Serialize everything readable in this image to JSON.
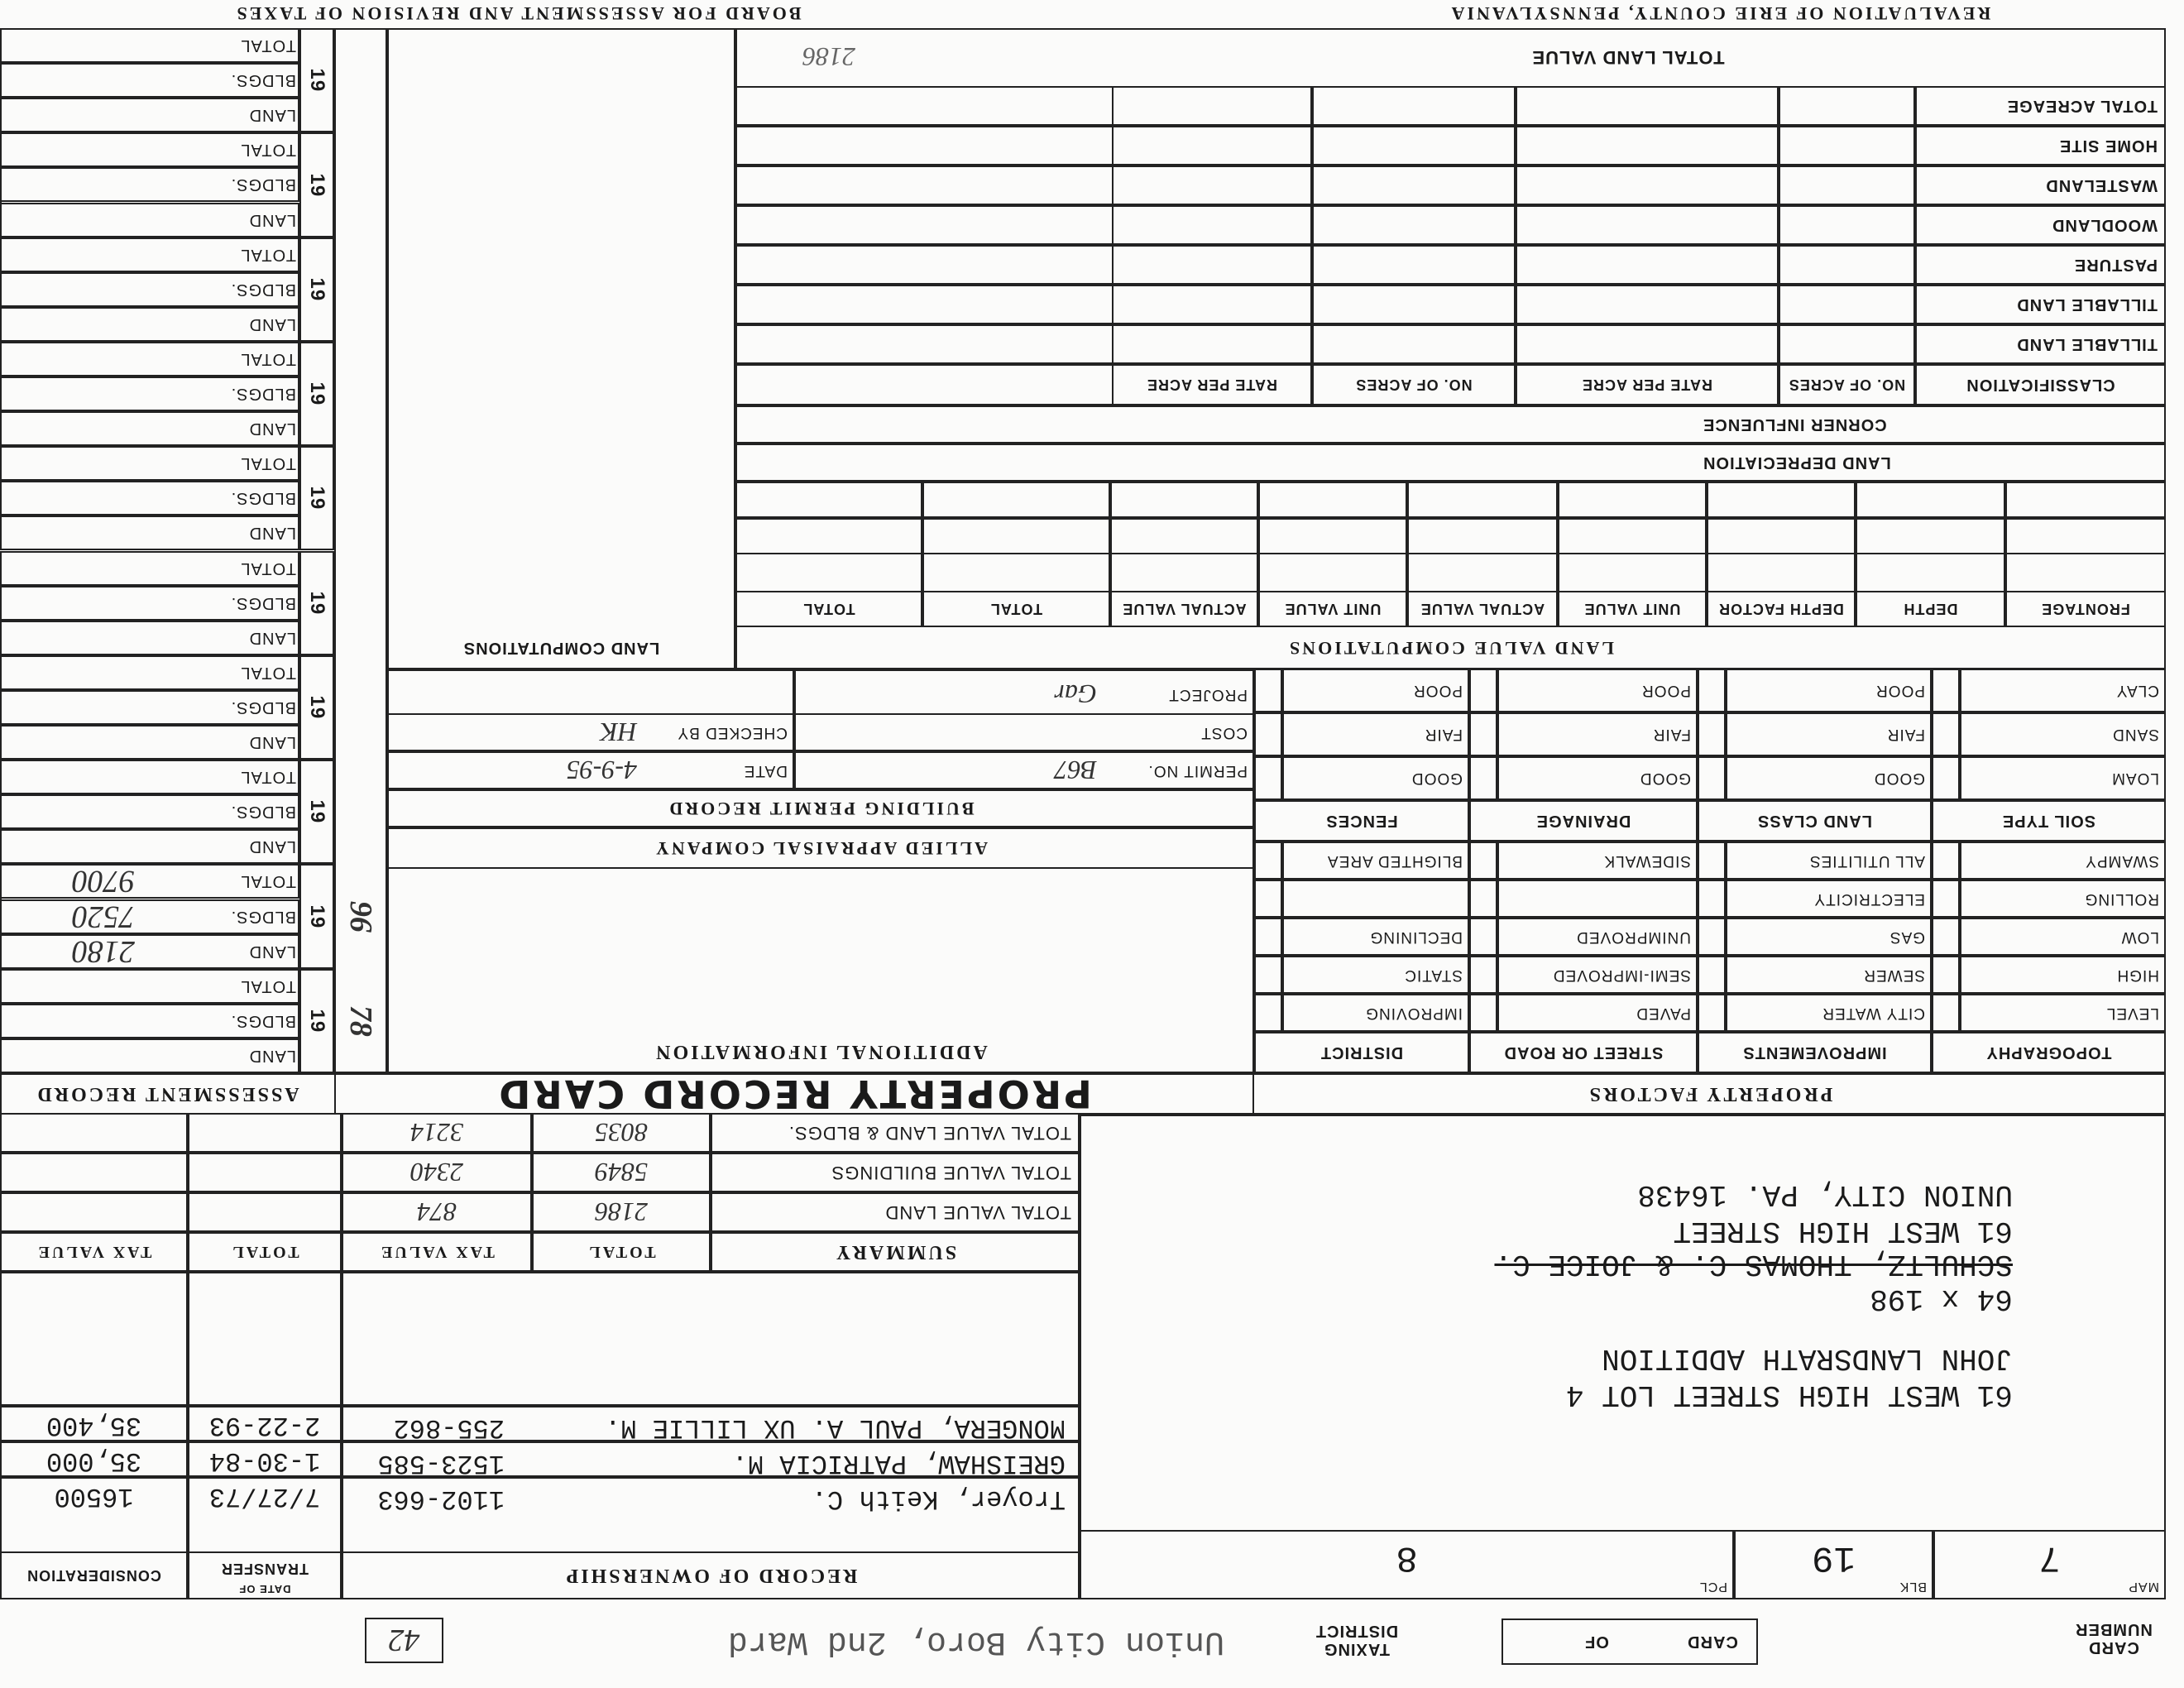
{
  "header": {
    "left_title": "REVALUATION OF ERIE COUNTY, PENNSYLVANIA",
    "right_title": "BOARD FOR ASSESSMENT AND REVISION OF TAXES"
  },
  "card": {
    "card_number_label": "CARD NUMBER",
    "card_label": "CARD",
    "of_label": "OF",
    "taxing_district_label": "TAXING DISTRICT",
    "taxing_district": "Union City Boro, 2nd Ward",
    "box_number": "42"
  },
  "parcel": {
    "map_label": "MAP",
    "map": "7",
    "blk_label": "BLK",
    "blk": "19",
    "pcl_label": "PCL",
    "pcl": "8"
  },
  "address": {
    "lines": [
      "61 WEST HIGH STREET LOT 4",
      "JOHN LANDSRATH ADDITION"
    ],
    "dimensions": "64 x 198",
    "struck_owner": "SCHULTZ, THOMAS C. & JOICE C.",
    "mailing": [
      "61 WEST HIGH STREET",
      "UNION CITY, PA. 16438"
    ]
  },
  "ownership": {
    "title": "RECORD OF OWNERSHIP",
    "date_label_top": "DATE OF",
    "date_label": "TRANSFER",
    "consideration_label": "CONSIDERATION",
    "rows": [
      {
        "name": "Troyer, Keith C.",
        "deed": "1102-663",
        "date": "7/27/73",
        "consideration": "16500"
      },
      {
        "name": "GREISHAW, PATRICIA M.",
        "deed": "1523-585",
        "date": "1-30-84",
        "consideration": "35,000"
      },
      {
        "name": "MONGERA, PAUL A. UX LILLIE M.",
        "deed": "255-862",
        "date": "2-22-93",
        "consideration": "35,400"
      }
    ]
  },
  "summary": {
    "title": "SUMMARY",
    "columns": [
      "TOTAL",
      "TAX VALUE",
      "TOTAL",
      "TAX VALUE"
    ],
    "rows": [
      {
        "label": "TOTAL VALUE LAND",
        "values": [
          "2186",
          "874"
        ]
      },
      {
        "label": "TOTAL VALUE BUILDINGS",
        "values": [
          "5849",
          "2340"
        ]
      },
      {
        "label": "TOTAL VALUE LAND & BLDGS.",
        "values": [
          "8035",
          "3214"
        ]
      }
    ]
  },
  "band": {
    "title": "PROPERTY RECORD CARD",
    "assessment_title": "ASSESSMENT RECORD",
    "factors_title": "PROPERTY FACTORS"
  },
  "factors": {
    "columns": [
      {
        "header": "TOPOGRAPHY",
        "items": [
          "LEVEL",
          "HIGH",
          "LOW",
          "ROLLING",
          "SWAMPY"
        ]
      },
      {
        "header": "IMPROVEMENTS",
        "items": [
          "CITY WATER",
          "SEWER",
          "GAS",
          "ELECTRICITY",
          "ALL UTILITIES"
        ]
      },
      {
        "header": "STREET OR ROAD",
        "items": [
          "PAVED",
          "SEMI-IMPROVED",
          "UNIMPROVED",
          null,
          "SIDEWALK"
        ]
      },
      {
        "header": "DISTRICT",
        "items": [
          "IMPROVING",
          "STATIC",
          "DECLINING",
          null,
          "BLIGHTED AREA"
        ]
      }
    ]
  },
  "soil": {
    "columns": [
      {
        "header": "SOIL TYPE",
        "items": [
          "LOAM",
          "SAND",
          "CLAY"
        ]
      },
      {
        "header": "LAND CLASS",
        "items": [
          "GOOD",
          "FAIR",
          "POOR"
        ]
      },
      {
        "header": "DRAINAGE",
        "items": [
          "GOOD",
          "FAIR",
          "POOR"
        ]
      },
      {
        "header": "FENCES",
        "items": [
          "GOOD",
          "FAIR",
          "POOR"
        ]
      }
    ]
  },
  "additional": {
    "title": "ADDITIONAL INFORMATION",
    "company": "ALLIED APPRAISAL COMPANY"
  },
  "permit": {
    "title": "BUILDING PERMIT RECORD",
    "permit_label": "PERMIT NO.",
    "permit_no": "B67",
    "date_label": "DATE",
    "date": "4-9-95",
    "cost_label": "COST",
    "checked_label": "CHECKED BY",
    "checked_by": "HK",
    "project_label": "PROJECT",
    "project": "Gar"
  },
  "land_value": {
    "title": "LAND VALUE COMPUTATIONS",
    "columns": [
      "FRONTAGE",
      "DEPTH",
      "DEPTH FACTOR",
      "UNIT VALUE",
      "ACTUAL VALUE",
      "UNIT VALUE",
      "ACTUAL VALUE",
      "TOTAL",
      "TOTAL"
    ],
    "rows": [
      "LAND DEPRECIATION",
      "CORNER INFLUENCE"
    ],
    "classification": {
      "label": "CLASSIFICATION",
      "columns": [
        "NO. OF ACRES",
        "RATE PER ACRE",
        "NO. OF ACRES",
        "RATE PER ACRE"
      ],
      "rows": [
        "TILLABLE LAND",
        "TILLABLE LAND",
        "PASTURE",
        "WOODLAND",
        "WASTELAND",
        "HOME SITE",
        "TOTAL ACREAGE"
      ]
    },
    "total_label": "TOTAL LAND VALUE",
    "total_value": "2186"
  },
  "land_computations": {
    "title": "LAND COMPUTATIONS"
  },
  "assessment": {
    "year_prefix": "19",
    "labels": [
      "LAND",
      "BLDGS.",
      "TOTAL"
    ],
    "records": [
      {
        "year": "78"
      },
      {
        "year": "96",
        "values": [
          "2180",
          "7520",
          "9700"
        ]
      },
      {},
      {},
      {},
      {},
      {},
      {},
      {},
      {}
    ]
  }
}
